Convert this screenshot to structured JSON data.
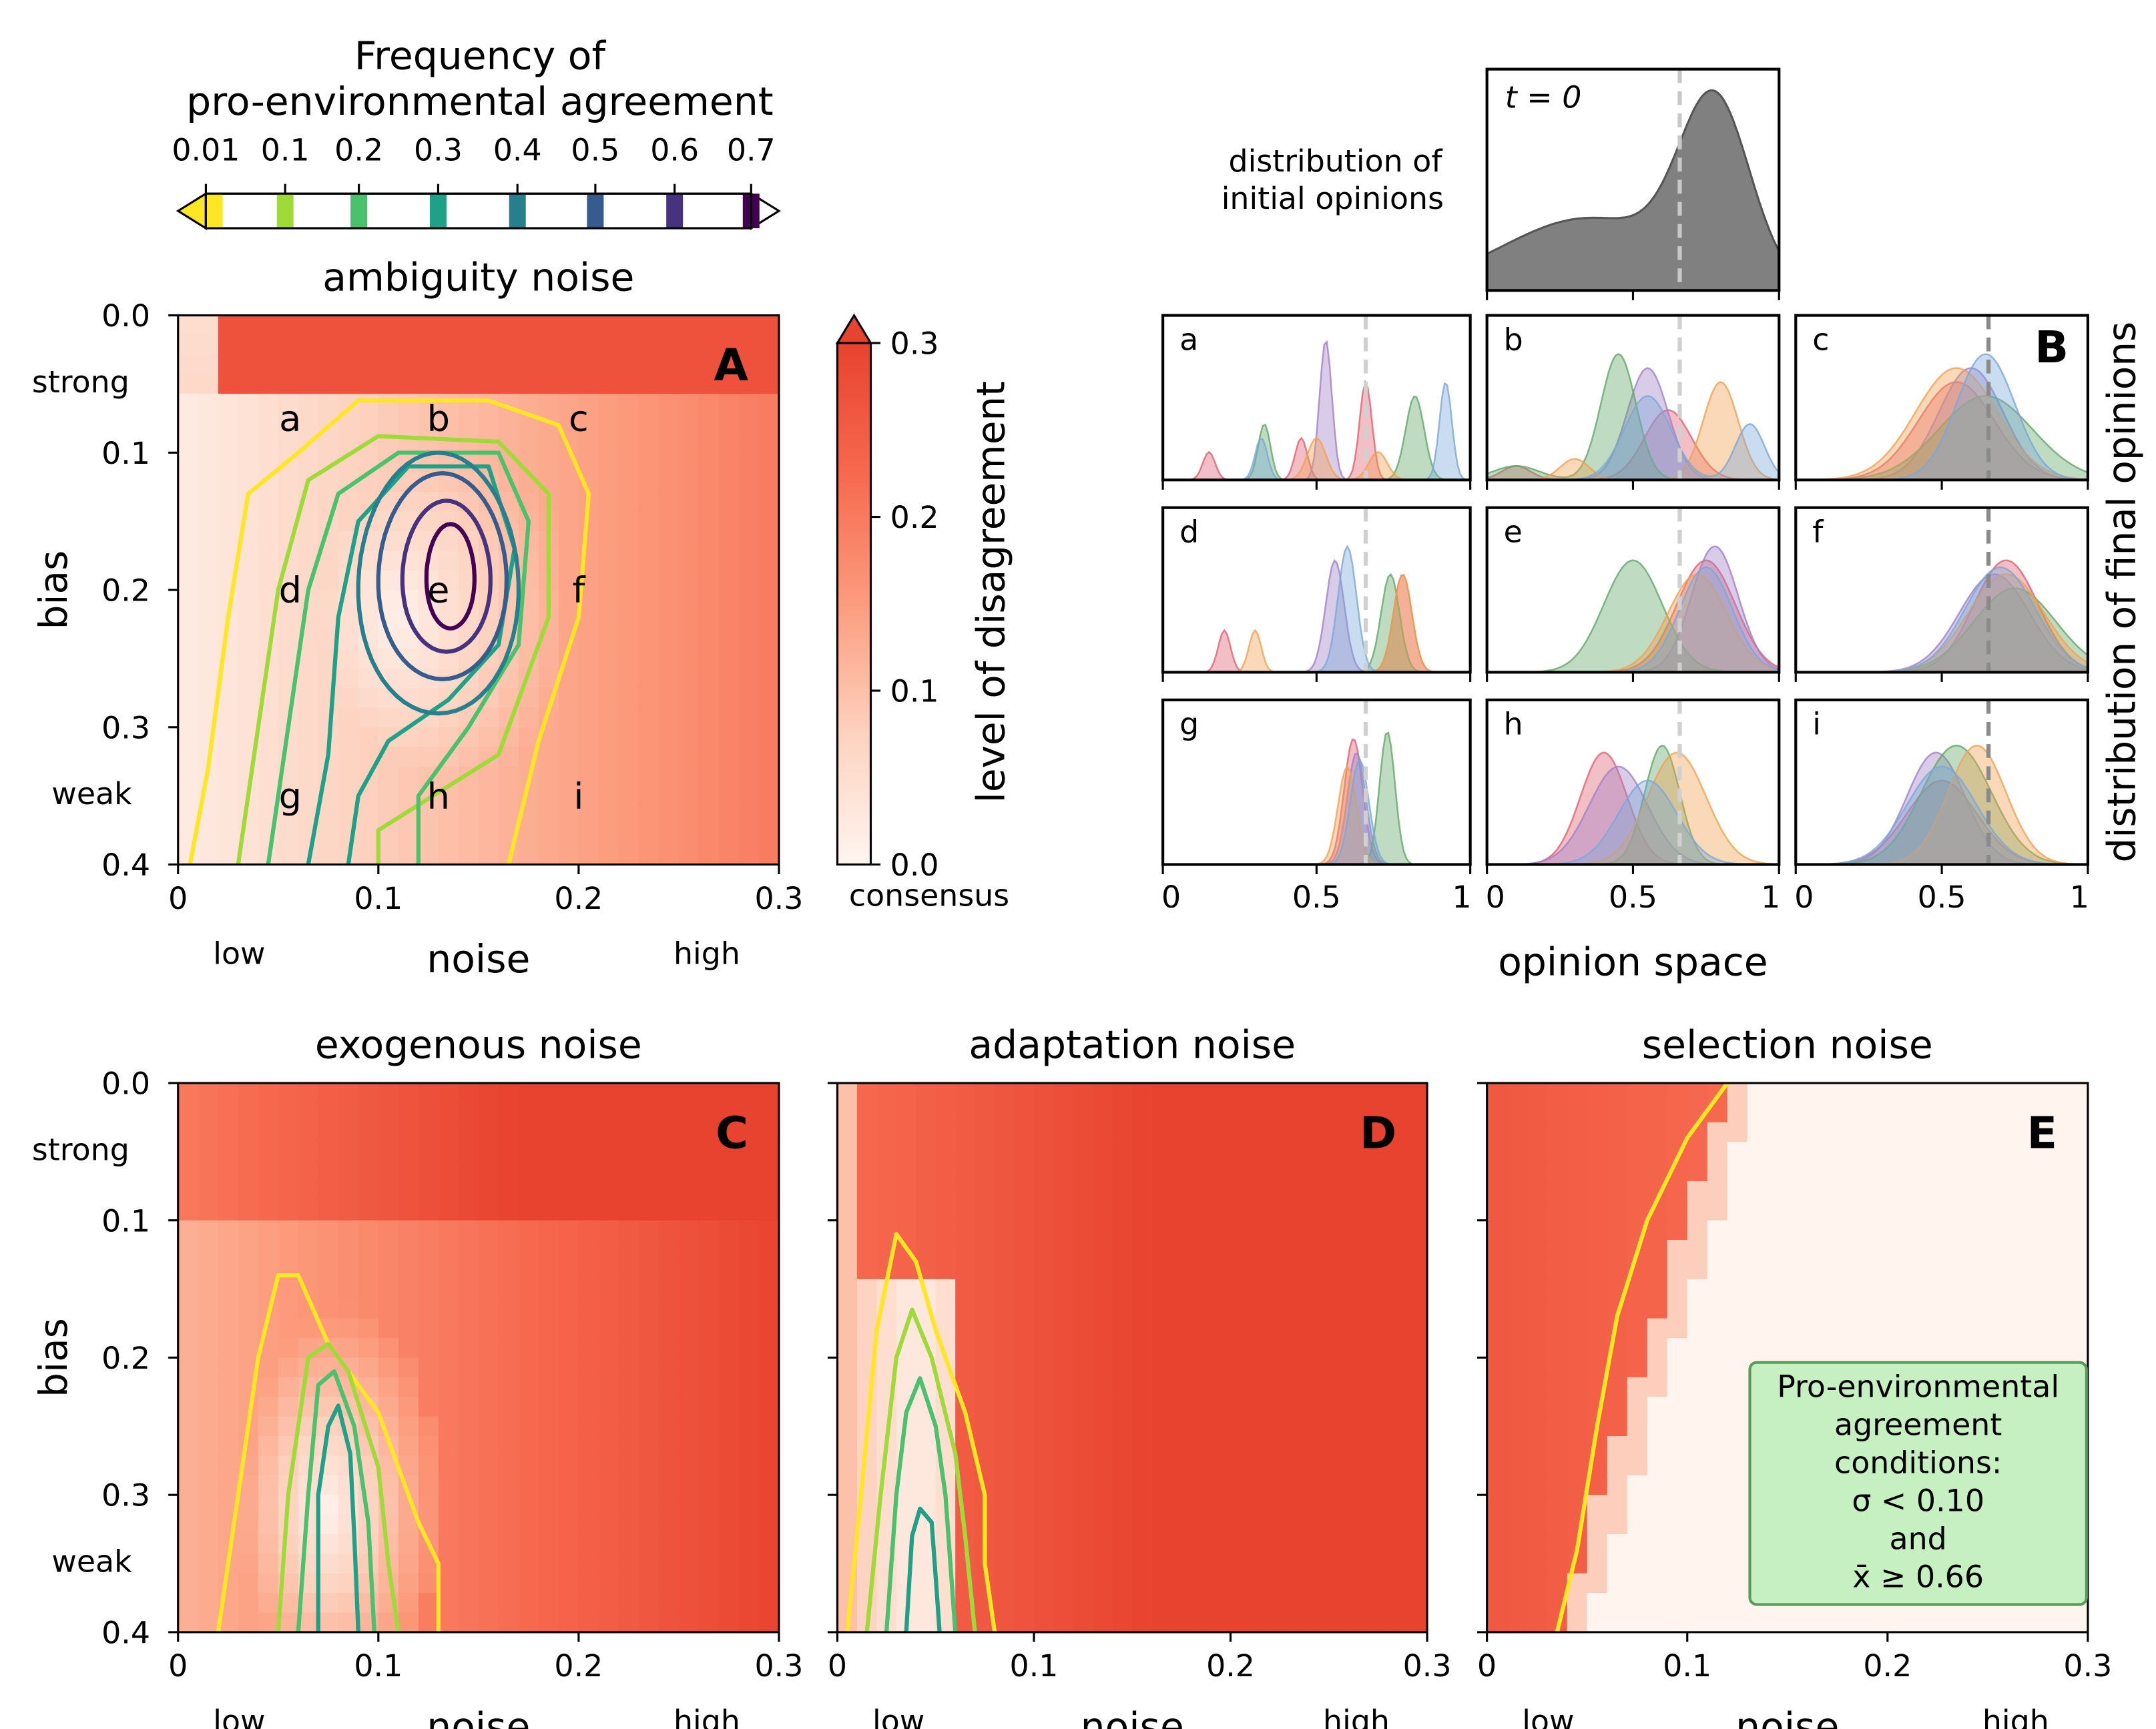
{
  "colorbar_top": {
    "title_line1": "Frequency of",
    "title_line2": "pro-environmental agreement",
    "ticks": [
      "0.01",
      "0.1",
      "0.2",
      "0.3",
      "0.4",
      "0.5",
      "0.6",
      "0.7"
    ],
    "colors": [
      "#fde725",
      "#a0da39",
      "#4ac16d",
      "#1fa187",
      "#277f8e",
      "#365c8d",
      "#46327e",
      "#440154"
    ]
  },
  "colorbar_side": {
    "label": "level of disagreement",
    "ticks": [
      "0.0",
      "0.1",
      "0.2",
      "0.3"
    ],
    "bottom_label": "consensus",
    "range": [
      0,
      0.3
    ]
  },
  "panelB": {
    "t0_label": "t = 0",
    "initial_label_line1": "distribution of",
    "initial_label_line2": "initial opinions",
    "side_label": "distribution of final opinions",
    "xlabel": "opinion space",
    "xticks": [
      "0",
      "0.5",
      "1"
    ],
    "subpanel_letters": [
      "a",
      "b",
      "c",
      "d",
      "e",
      "f",
      "g",
      "h",
      "i"
    ],
    "dashed_x": 0.66,
    "series_colors": [
      "#e06070",
      "#a080c8",
      "#60a868",
      "#f2a050",
      "#7aa8d8"
    ]
  },
  "shared": {
    "xlabel": "noise",
    "ylabel": "bias",
    "x_low": "low",
    "x_high": "high",
    "y_strong": "strong",
    "y_weak": "weak",
    "xticks": [
      "0",
      "0.1",
      "0.2",
      "0.3"
    ],
    "yticks": [
      "0.0",
      "0.1",
      "0.2",
      "0.3",
      "0.4"
    ]
  },
  "annotation": {
    "line1": "Pro-environmental",
    "line2": "agreement",
    "line3": "conditions:",
    "line4": "σ < 0.10",
    "line5": "and",
    "line6": "x̄ ≥ 0.66"
  },
  "chart_data": [
    {
      "type": "heatmap",
      "panel": "A",
      "title": "ambiguity noise",
      "xlabel": "noise",
      "ylabel": "bias",
      "xlim": [
        0,
        0.3
      ],
      "ylim": [
        0.4,
        0.0
      ],
      "letters": [
        "a",
        "b",
        "c",
        "d",
        "e",
        "f",
        "g",
        "h",
        "i"
      ],
      "letter_positions": [
        [
          0.056,
          0.075
        ],
        [
          0.13,
          0.075
        ],
        [
          0.2,
          0.075
        ],
        [
          0.056,
          0.2
        ],
        [
          0.13,
          0.2
        ],
        [
          0.2,
          0.2
        ],
        [
          0.056,
          0.35
        ],
        [
          0.13,
          0.35
        ],
        [
          0.2,
          0.35
        ]
      ],
      "contour_levels": [
        0.01,
        0.1,
        0.2,
        0.3,
        0.4,
        0.5,
        0.6,
        0.7
      ],
      "contour_center": [
        0.128,
        0.185
      ],
      "disagreement_max": 0.3
    },
    {
      "type": "area",
      "panel": "B",
      "xlabel": "opinion space",
      "xlim": [
        0,
        1
      ],
      "initial_distribution": {
        "label": "t = 0",
        "mean_marker": 0.66
      },
      "subpanels": [
        "a",
        "b",
        "c",
        "d",
        "e",
        "f",
        "g",
        "h",
        "i"
      ]
    },
    {
      "type": "heatmap",
      "panel": "C",
      "title": "exogenous noise",
      "xlabel": "noise",
      "ylabel": "bias",
      "xlim": [
        0,
        0.3
      ],
      "ylim": [
        0.4,
        0.0
      ],
      "contour_levels": [
        0.01,
        0.1,
        0.2,
        0.3
      ],
      "contour_center": [
        0.076,
        0.3
      ]
    },
    {
      "type": "heatmap",
      "panel": "D",
      "title": "adaptation noise",
      "xlabel": "noise",
      "ylabel": "bias",
      "xlim": [
        0,
        0.3
      ],
      "ylim": [
        0.4,
        0.0
      ],
      "contour_levels": [
        0.01,
        0.1,
        0.2,
        0.3
      ],
      "contour_center": [
        0.042,
        0.3
      ]
    },
    {
      "type": "heatmap",
      "panel": "E",
      "title": "selection noise",
      "xlabel": "noise",
      "ylabel": "bias",
      "xlim": [
        0,
        0.3
      ],
      "ylim": [
        0.4,
        0.0
      ],
      "contour_levels": [
        0.01
      ],
      "consensus_boundary_noise": [
        0.12,
        0.035
      ]
    }
  ]
}
